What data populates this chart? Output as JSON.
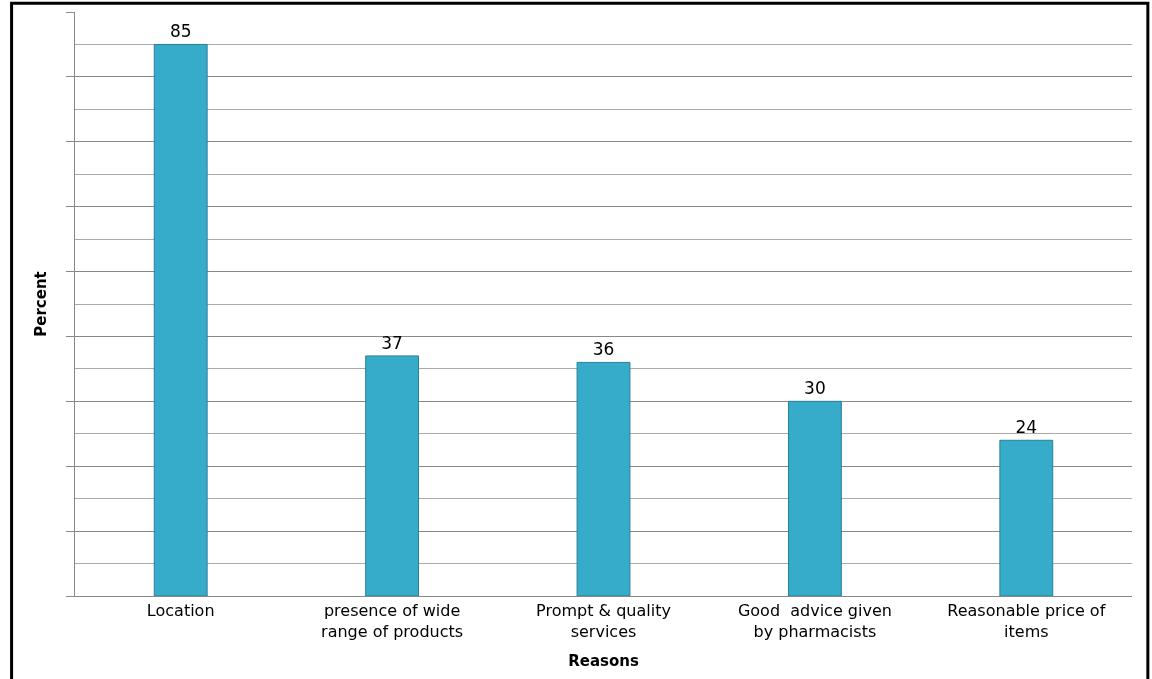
{
  "chart_data": {
    "type": "bar",
    "categories": [
      "Location",
      "presence of wide range of products",
      "Prompt & quality services",
      "Good  advice given by pharmacists",
      "Reasonable price of items"
    ],
    "values": [
      85,
      37,
      36,
      30,
      24
    ],
    "color": "#36acca",
    "xlabel": "Reasons",
    "ylabel": "Percent",
    "ylim": [
      0,
      90
    ],
    "yticks": [
      {
        "value": 0,
        "label": null
      },
      {
        "value": 10,
        "label": null
      },
      {
        "value": 20,
        "label": null
      },
      {
        "value": 30,
        "label": null
      },
      {
        "value": 40,
        "label": null
      },
      {
        "value": 50,
        "label": null
      },
      {
        "value": 60,
        "label": null
      },
      {
        "value": 70,
        "label": null
      },
      {
        "value": 80,
        "label": null
      },
      {
        "value": 90,
        "label": null
      }
    ],
    "tick_labels": "x",
    "grid": "y",
    "data_labels": true
  }
}
